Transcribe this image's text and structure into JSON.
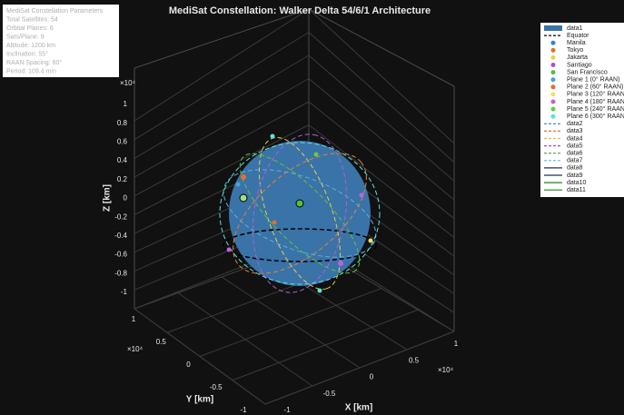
{
  "chart_data": {
    "type": "scatter3d",
    "title": "MediSat Constellation: Walker Delta 54/6/1 Architecture",
    "xlabel": "X [km]",
    "ylabel": "Y [km]",
    "zlabel": "Z [km]",
    "xexponent": "×10⁴",
    "yexponent": "×10⁴",
    "zexponent": "×10⁴",
    "zlim": [
      -10000,
      10000
    ],
    "zticks": [
      {
        "value": 10000,
        "label": "1"
      },
      {
        "value": 8000,
        "label": "0.8"
      },
      {
        "value": 6000,
        "label": "0.6"
      },
      {
        "value": 4000,
        "label": "0.4"
      },
      {
        "value": 2000,
        "label": "0.2"
      },
      0,
      {
        "value": -2000,
        "label": "-0.2"
      },
      {
        "value": -4000,
        "label": "-0.4"
      },
      {
        "value": -6000,
        "label": "-0.6"
      },
      {
        "value": -8000,
        "label": "-0.8"
      },
      {
        "value": -10000,
        "label": "-1"
      }
    ],
    "ylim": [
      -10000,
      10000
    ],
    "yticks": [
      {
        "value": 10000,
        "label": "1"
      },
      {
        "value": 5000,
        "label": "0.5"
      },
      0,
      {
        "value": -5000,
        "label": "-0.5"
      },
      {
        "value": -10000,
        "label": "-1"
      }
    ],
    "xlim": [
      -10000,
      10000
    ],
    "xticks": [
      {
        "value": -10000,
        "label": "-1"
      },
      {
        "value": -5000,
        "label": "-0.5"
      },
      0,
      {
        "value": 5000,
        "label": "0.5"
      },
      {
        "value": 10000,
        "label": "1"
      }
    ],
    "grid": true,
    "annotation": [
      "MediSat Constellation Parameters",
      "Total Satellites: 54",
      "Orbital Planes: 6",
      "Sats/Plane: 9",
      "Altitude: 1200 km",
      "Inclination: 55°",
      "RAAN Spacing: 60°",
      "Period: 109.4 min"
    ],
    "legend": [
      {
        "name": "data1",
        "color": "#3a73a8",
        "marker": "patch"
      },
      {
        "name": "Equator",
        "color": "#000000",
        "marker": "dash"
      },
      {
        "name": "Manila",
        "color": "#3b82c4",
        "marker": "dot"
      },
      {
        "name": "Tokyo",
        "color": "#e07030",
        "marker": "dot"
      },
      {
        "name": "Jakarta",
        "color": "#f0d040",
        "marker": "dot"
      },
      {
        "name": "Santiago",
        "color": "#b050d0",
        "marker": "dot"
      },
      {
        "name": "San Francisco",
        "color": "#50c040",
        "marker": "dot"
      },
      {
        "name": "Plane 1 (0° RAAN)",
        "color": "#4aa0e0",
        "marker": "dot"
      },
      {
        "name": "Plane 2 (60° RAAN)",
        "color": "#e0702a",
        "marker": "dot"
      },
      {
        "name": "Plane 3 (120° RAAN)",
        "color": "#f0e060",
        "marker": "dot"
      },
      {
        "name": "Plane 4 (180° RAAN)",
        "color": "#c060e0",
        "marker": "dot"
      },
      {
        "name": "Plane 5 (240° RAAN)",
        "color": "#60d040",
        "marker": "dot"
      },
      {
        "name": "Plane 6 (300° RAAN)",
        "color": "#60e0e0",
        "marker": "dot"
      },
      {
        "name": "data2",
        "color": "#3a80c0",
        "marker": "dash"
      },
      {
        "name": "data3",
        "color": "#e07030",
        "marker": "dash"
      },
      {
        "name": "data4",
        "color": "#e0c040",
        "marker": "dash"
      },
      {
        "name": "data5",
        "color": "#a050c0",
        "marker": "dash"
      },
      {
        "name": "data6",
        "color": "#50a040",
        "marker": "dash"
      },
      {
        "name": "data7",
        "color": "#50c0d0",
        "marker": "dash"
      },
      {
        "name": "data8",
        "color": "#203050",
        "marker": "line"
      },
      {
        "name": "data9",
        "color": "#203050",
        "marker": "line"
      },
      {
        "name": "data10",
        "color": "#208020",
        "marker": "line"
      },
      {
        "name": "data11",
        "color": "#208020",
        "marker": "line"
      }
    ]
  }
}
